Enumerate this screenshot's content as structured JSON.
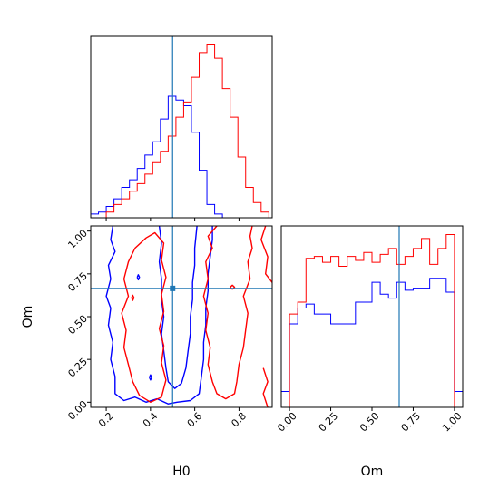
{
  "chart_data": {
    "type": "corner",
    "parameters": [
      "H0",
      "Om"
    ],
    "truth": {
      "H0": 0.5,
      "Om": 0.665
    },
    "colors": {
      "series_a": "#0000ff",
      "series_b": "#ff0000",
      "truth": "#1f77b4"
    },
    "panels": [
      {
        "id": "hist-H0",
        "type": "histogram",
        "xlim": [
          0.13,
          0.95
        ],
        "x_ticks": [
          0.2,
          0.4,
          0.6,
          0.8
        ],
        "bins_start": 0.13,
        "bin_width": 0.035,
        "series": [
          {
            "color": "#0000ff",
            "counts": [
              0.02,
              0.03,
              0.06,
              0.1,
              0.16,
              0.2,
              0.26,
              0.33,
              0.4,
              0.52,
              0.64,
              0.62,
              0.59,
              0.45,
              0.25,
              0.07,
              0.02,
              0,
              0,
              0,
              0,
              0,
              0
            ]
          },
          {
            "color": "#ff0000",
            "counts": [
              0,
              0,
              0.03,
              0.07,
              0.1,
              0.14,
              0.18,
              0.23,
              0.29,
              0.35,
              0.43,
              0.53,
              0.61,
              0.74,
              0.87,
              0.91,
              0.84,
              0.68,
              0.53,
              0.32,
              0.16,
              0.08,
              0.03
            ]
          }
        ]
      },
      {
        "id": "contour-H0-Om",
        "type": "contour",
        "xlim": [
          0.13,
          0.95
        ],
        "ylim": [
          -0.03,
          1.03
        ],
        "x_ticks": [
          0.2,
          0.4,
          0.6,
          0.8
        ],
        "y_ticks": [
          0.0,
          0.25,
          0.5,
          0.75,
          1.0
        ],
        "y_tick_labels": [
          "0.00",
          "0.25",
          "0.50",
          "0.75",
          "1.00"
        ],
        "xlabel": "H0",
        "ylabel": "Om",
        "series": [
          {
            "color": "#0000ff",
            "contours": [
              [
                [
                  0.23,
                  1.03
                ],
                [
                  0.22,
                  0.95
                ],
                [
                  0.24,
                  0.88
                ],
                [
                  0.21,
                  0.8
                ],
                [
                  0.22,
                  0.72
                ],
                [
                  0.2,
                  0.62
                ],
                [
                  0.22,
                  0.55
                ],
                [
                  0.21,
                  0.45
                ],
                [
                  0.23,
                  0.35
                ],
                [
                  0.22,
                  0.25
                ],
                [
                  0.24,
                  0.15
                ],
                [
                  0.24,
                  0.05
                ],
                [
                  0.28,
                  0.01
                ],
                [
                  0.33,
                  0.03
                ],
                [
                  0.38,
                  0.0
                ],
                [
                  0.43,
                  0.02
                ],
                [
                  0.48,
                  -0.01
                ],
                [
                  0.52,
                  0.0
                ],
                [
                  0.58,
                  0.01
                ],
                [
                  0.62,
                  0.05
                ],
                [
                  0.63,
                  0.15
                ],
                [
                  0.64,
                  0.25
                ],
                [
                  0.64,
                  0.35
                ],
                [
                  0.65,
                  0.45
                ],
                [
                  0.65,
                  0.55
                ],
                [
                  0.66,
                  0.65
                ],
                [
                  0.66,
                  0.75
                ],
                [
                  0.67,
                  0.85
                ],
                [
                  0.68,
                  0.95
                ],
                [
                  0.68,
                  1.03
                ]
              ],
              [
                [
                  0.44,
                  1.03
                ],
                [
                  0.45,
                  0.93
                ],
                [
                  0.44,
                  0.82
                ],
                [
                  0.45,
                  0.72
                ],
                [
                  0.45,
                  0.6
                ],
                [
                  0.46,
                  0.5
                ],
                [
                  0.45,
                  0.4
                ],
                [
                  0.46,
                  0.3
                ],
                [
                  0.47,
                  0.2
                ],
                [
                  0.48,
                  0.12
                ],
                [
                  0.51,
                  0.08
                ],
                [
                  0.54,
                  0.11
                ],
                [
                  0.56,
                  0.2
                ],
                [
                  0.57,
                  0.3
                ],
                [
                  0.58,
                  0.4
                ],
                [
                  0.58,
                  0.5
                ],
                [
                  0.59,
                  0.6
                ],
                [
                  0.59,
                  0.7
                ],
                [
                  0.6,
                  0.8
                ],
                [
                  0.6,
                  0.9
                ],
                [
                  0.61,
                  1.03
                ]
              ],
              [
                [
                  0.34,
                  0.73
                ],
                [
                  0.345,
                  0.715
                ],
                [
                  0.35,
                  0.73
                ],
                [
                  0.345,
                  0.745
                ],
                [
                  0.34,
                  0.73
                ]
              ],
              [
                [
                  0.395,
                  0.145
                ],
                [
                  0.4,
                  0.13
                ],
                [
                  0.405,
                  0.145
                ],
                [
                  0.4,
                  0.16
                ],
                [
                  0.395,
                  0.145
                ]
              ]
            ]
          },
          {
            "color": "#ff0000",
            "contours": [
              [
                [
                  0.7,
                  1.03
                ],
                [
                  0.66,
                  0.97
                ],
                [
                  0.68,
                  0.9
                ],
                [
                  0.65,
                  0.82
                ],
                [
                  0.66,
                  0.72
                ],
                [
                  0.64,
                  0.62
                ],
                [
                  0.66,
                  0.52
                ],
                [
                  0.65,
                  0.42
                ],
                [
                  0.67,
                  0.32
                ],
                [
                  0.66,
                  0.22
                ],
                [
                  0.68,
                  0.12
                ],
                [
                  0.7,
                  0.05
                ],
                [
                  0.74,
                  0.02
                ],
                [
                  0.78,
                  0.05
                ],
                [
                  0.79,
                  0.12
                ],
                [
                  0.8,
                  0.22
                ],
                [
                  0.82,
                  0.32
                ],
                [
                  0.83,
                  0.42
                ],
                [
                  0.84,
                  0.52
                ],
                [
                  0.82,
                  0.62
                ],
                [
                  0.85,
                  0.72
                ],
                [
                  0.84,
                  0.82
                ],
                [
                  0.86,
                  0.9
                ],
                [
                  0.85,
                  0.97
                ],
                [
                  0.86,
                  1.03
                ]
              ],
              [
                [
                  0.38,
                  0.96
                ],
                [
                  0.33,
                  0.9
                ],
                [
                  0.3,
                  0.82
                ],
                [
                  0.28,
                  0.72
                ],
                [
                  0.3,
                  0.62
                ],
                [
                  0.27,
                  0.52
                ],
                [
                  0.29,
                  0.42
                ],
                [
                  0.28,
                  0.32
                ],
                [
                  0.3,
                  0.22
                ],
                [
                  0.32,
                  0.12
                ],
                [
                  0.35,
                  0.04
                ],
                [
                  0.4,
                  0.0
                ],
                [
                  0.45,
                  0.03
                ],
                [
                  0.47,
                  0.13
                ],
                [
                  0.45,
                  0.23
                ],
                [
                  0.46,
                  0.33
                ],
                [
                  0.44,
                  0.43
                ],
                [
                  0.46,
                  0.53
                ],
                [
                  0.45,
                  0.63
                ],
                [
                  0.47,
                  0.73
                ],
                [
                  0.45,
                  0.83
                ],
                [
                  0.46,
                  0.93
                ],
                [
                  0.42,
                  0.99
                ],
                [
                  0.38,
                  0.96
                ]
              ],
              [
                [
                  0.92,
                  1.03
                ],
                [
                  0.9,
                  0.95
                ],
                [
                  0.93,
                  0.85
                ],
                [
                  0.92,
                  0.75
                ],
                [
                  0.95,
                  0.7
                ]
              ],
              [
                [
                  0.91,
                  0.2
                ],
                [
                  0.93,
                  0.12
                ],
                [
                  0.91,
                  0.05
                ],
                [
                  0.93,
                  -0.03
                ]
              ],
              [
                [
                  0.76,
                  0.672
                ],
                [
                  0.77,
                  0.66
                ],
                [
                  0.78,
                  0.672
                ],
                [
                  0.77,
                  0.684
                ],
                [
                  0.76,
                  0.672
                ]
              ],
              [
                [
                  0.315,
                  0.61
                ],
                [
                  0.32,
                  0.595
                ],
                [
                  0.325,
                  0.61
                ],
                [
                  0.32,
                  0.625
                ],
                [
                  0.315,
                  0.61
                ]
              ]
            ]
          }
        ]
      },
      {
        "id": "hist-Om",
        "type": "histogram",
        "xlim": [
          -0.05,
          1.05
        ],
        "x_ticks": [
          0.0,
          0.25,
          0.5,
          0.75,
          1.0
        ],
        "x_tick_labels": [
          "0.00",
          "0.25",
          "0.50",
          "0.75",
          "1.00"
        ],
        "xlabel": "Om",
        "bins_start": -0.05,
        "bin_width": 0.05,
        "series": [
          {
            "color": "#0000ff",
            "counts": [
              0.08,
              0.42,
              0.5,
              0.52,
              0.47,
              0.47,
              0.42,
              0.42,
              0.42,
              0.53,
              0.53,
              0.63,
              0.57,
              0.55,
              0.63,
              0.59,
              0.6,
              0.6,
              0.65,
              0.65,
              0.58,
              0.08
            ]
          },
          {
            "color": "#ff0000",
            "counts": [
              0,
              0.47,
              0.53,
              0.75,
              0.76,
              0.73,
              0.76,
              0.71,
              0.76,
              0.74,
              0.78,
              0.73,
              0.77,
              0.8,
              0.72,
              0.76,
              0.8,
              0.85,
              0.72,
              0.8,
              0.87,
              0
            ]
          }
        ]
      }
    ]
  }
}
